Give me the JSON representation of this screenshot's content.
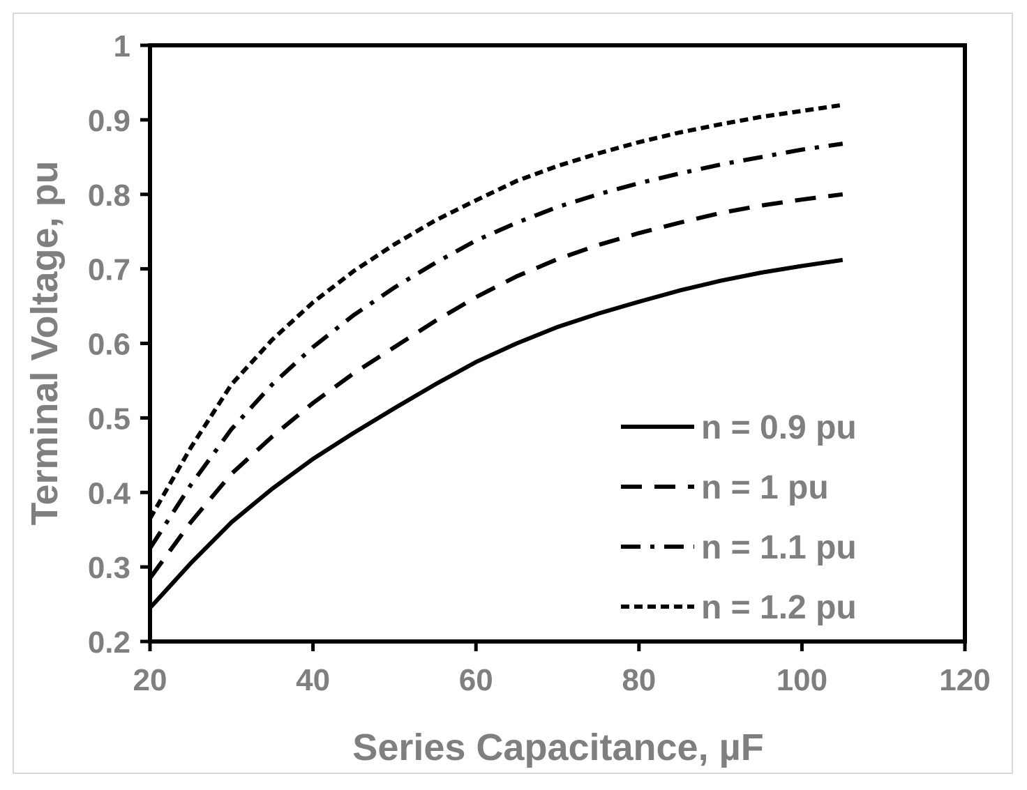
{
  "chart_data": {
    "type": "line",
    "title": "",
    "xlabel": "Series Capacitance, µF",
    "ylabel": "Terminal Voltage, pu",
    "xlim": [
      20,
      120
    ],
    "ylim": [
      0.2,
      1
    ],
    "xticks": [
      "20",
      "40",
      "60",
      "80",
      "100",
      "120"
    ],
    "yticks": [
      "0.2",
      "0.3",
      "0.4",
      "0.5",
      "0.6",
      "0.7",
      "0.8",
      "0.9",
      "1"
    ],
    "grid": false,
    "legend_position": "bottom-right",
    "x": [
      20,
      25,
      30,
      35,
      40,
      45,
      50,
      55,
      60,
      65,
      70,
      75,
      80,
      85,
      90,
      95,
      100,
      105
    ],
    "series": [
      {
        "name": "n = 0.9 pu",
        "dash": "solid",
        "values": [
          0.245,
          0.305,
          0.36,
          0.405,
          0.445,
          0.48,
          0.513,
          0.545,
          0.575,
          0.6,
          0.622,
          0.64,
          0.656,
          0.671,
          0.684,
          0.695,
          0.704,
          0.712
        ]
      },
      {
        "name": "n = 1 pu",
        "dash": "long-dash",
        "values": [
          0.285,
          0.36,
          0.425,
          0.475,
          0.52,
          0.56,
          0.595,
          0.63,
          0.662,
          0.69,
          0.713,
          0.732,
          0.748,
          0.762,
          0.775,
          0.785,
          0.793,
          0.8
        ]
      },
      {
        "name": "n = 1.1 pu",
        "dash": "dash-dot",
        "values": [
          0.325,
          0.41,
          0.485,
          0.545,
          0.595,
          0.638,
          0.675,
          0.708,
          0.738,
          0.762,
          0.783,
          0.8,
          0.815,
          0.828,
          0.84,
          0.85,
          0.86,
          0.868
        ]
      },
      {
        "name": "n = 1.2 pu",
        "dash": "short-dash",
        "values": [
          0.365,
          0.46,
          0.545,
          0.605,
          0.655,
          0.697,
          0.733,
          0.765,
          0.792,
          0.818,
          0.838,
          0.855,
          0.87,
          0.883,
          0.894,
          0.904,
          0.912,
          0.92
        ]
      }
    ],
    "colors": {
      "lines": "#000000",
      "text": "#7f7f7f",
      "frame": "#d9d9d9"
    }
  }
}
